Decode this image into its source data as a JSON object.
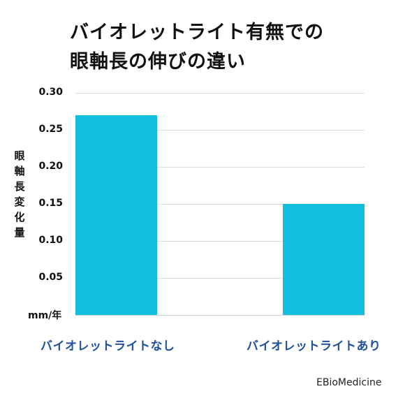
{
  "chart_data": {
    "type": "bar",
    "title": "バイオレットライト有無での眼軸長の伸びの違い",
    "title_lines": [
      "バイオレットライト有無での",
      "眼軸長の伸びの違い"
    ],
    "categories": [
      "バイオレットライトなし",
      "バイオレットライトあり"
    ],
    "values": [
      0.27,
      0.15
    ],
    "xlabel": "",
    "ylabel": "眼軸長変化量",
    "ylabel_chars": [
      "眼",
      "軸",
      "長",
      "変",
      "化",
      "量"
    ],
    "y_unit": "mm/年",
    "ylim": [
      0,
      0.3
    ],
    "yticks": [
      "0.30",
      "0.25",
      "0.20",
      "0.15",
      "0.10",
      "0.05"
    ],
    "grid": true,
    "legend": null,
    "source": "EBioMedicine",
    "colors": {
      "bar": "#12bfdf",
      "category_label": "#1f4fa0",
      "grid": "#dcdcdc"
    }
  }
}
